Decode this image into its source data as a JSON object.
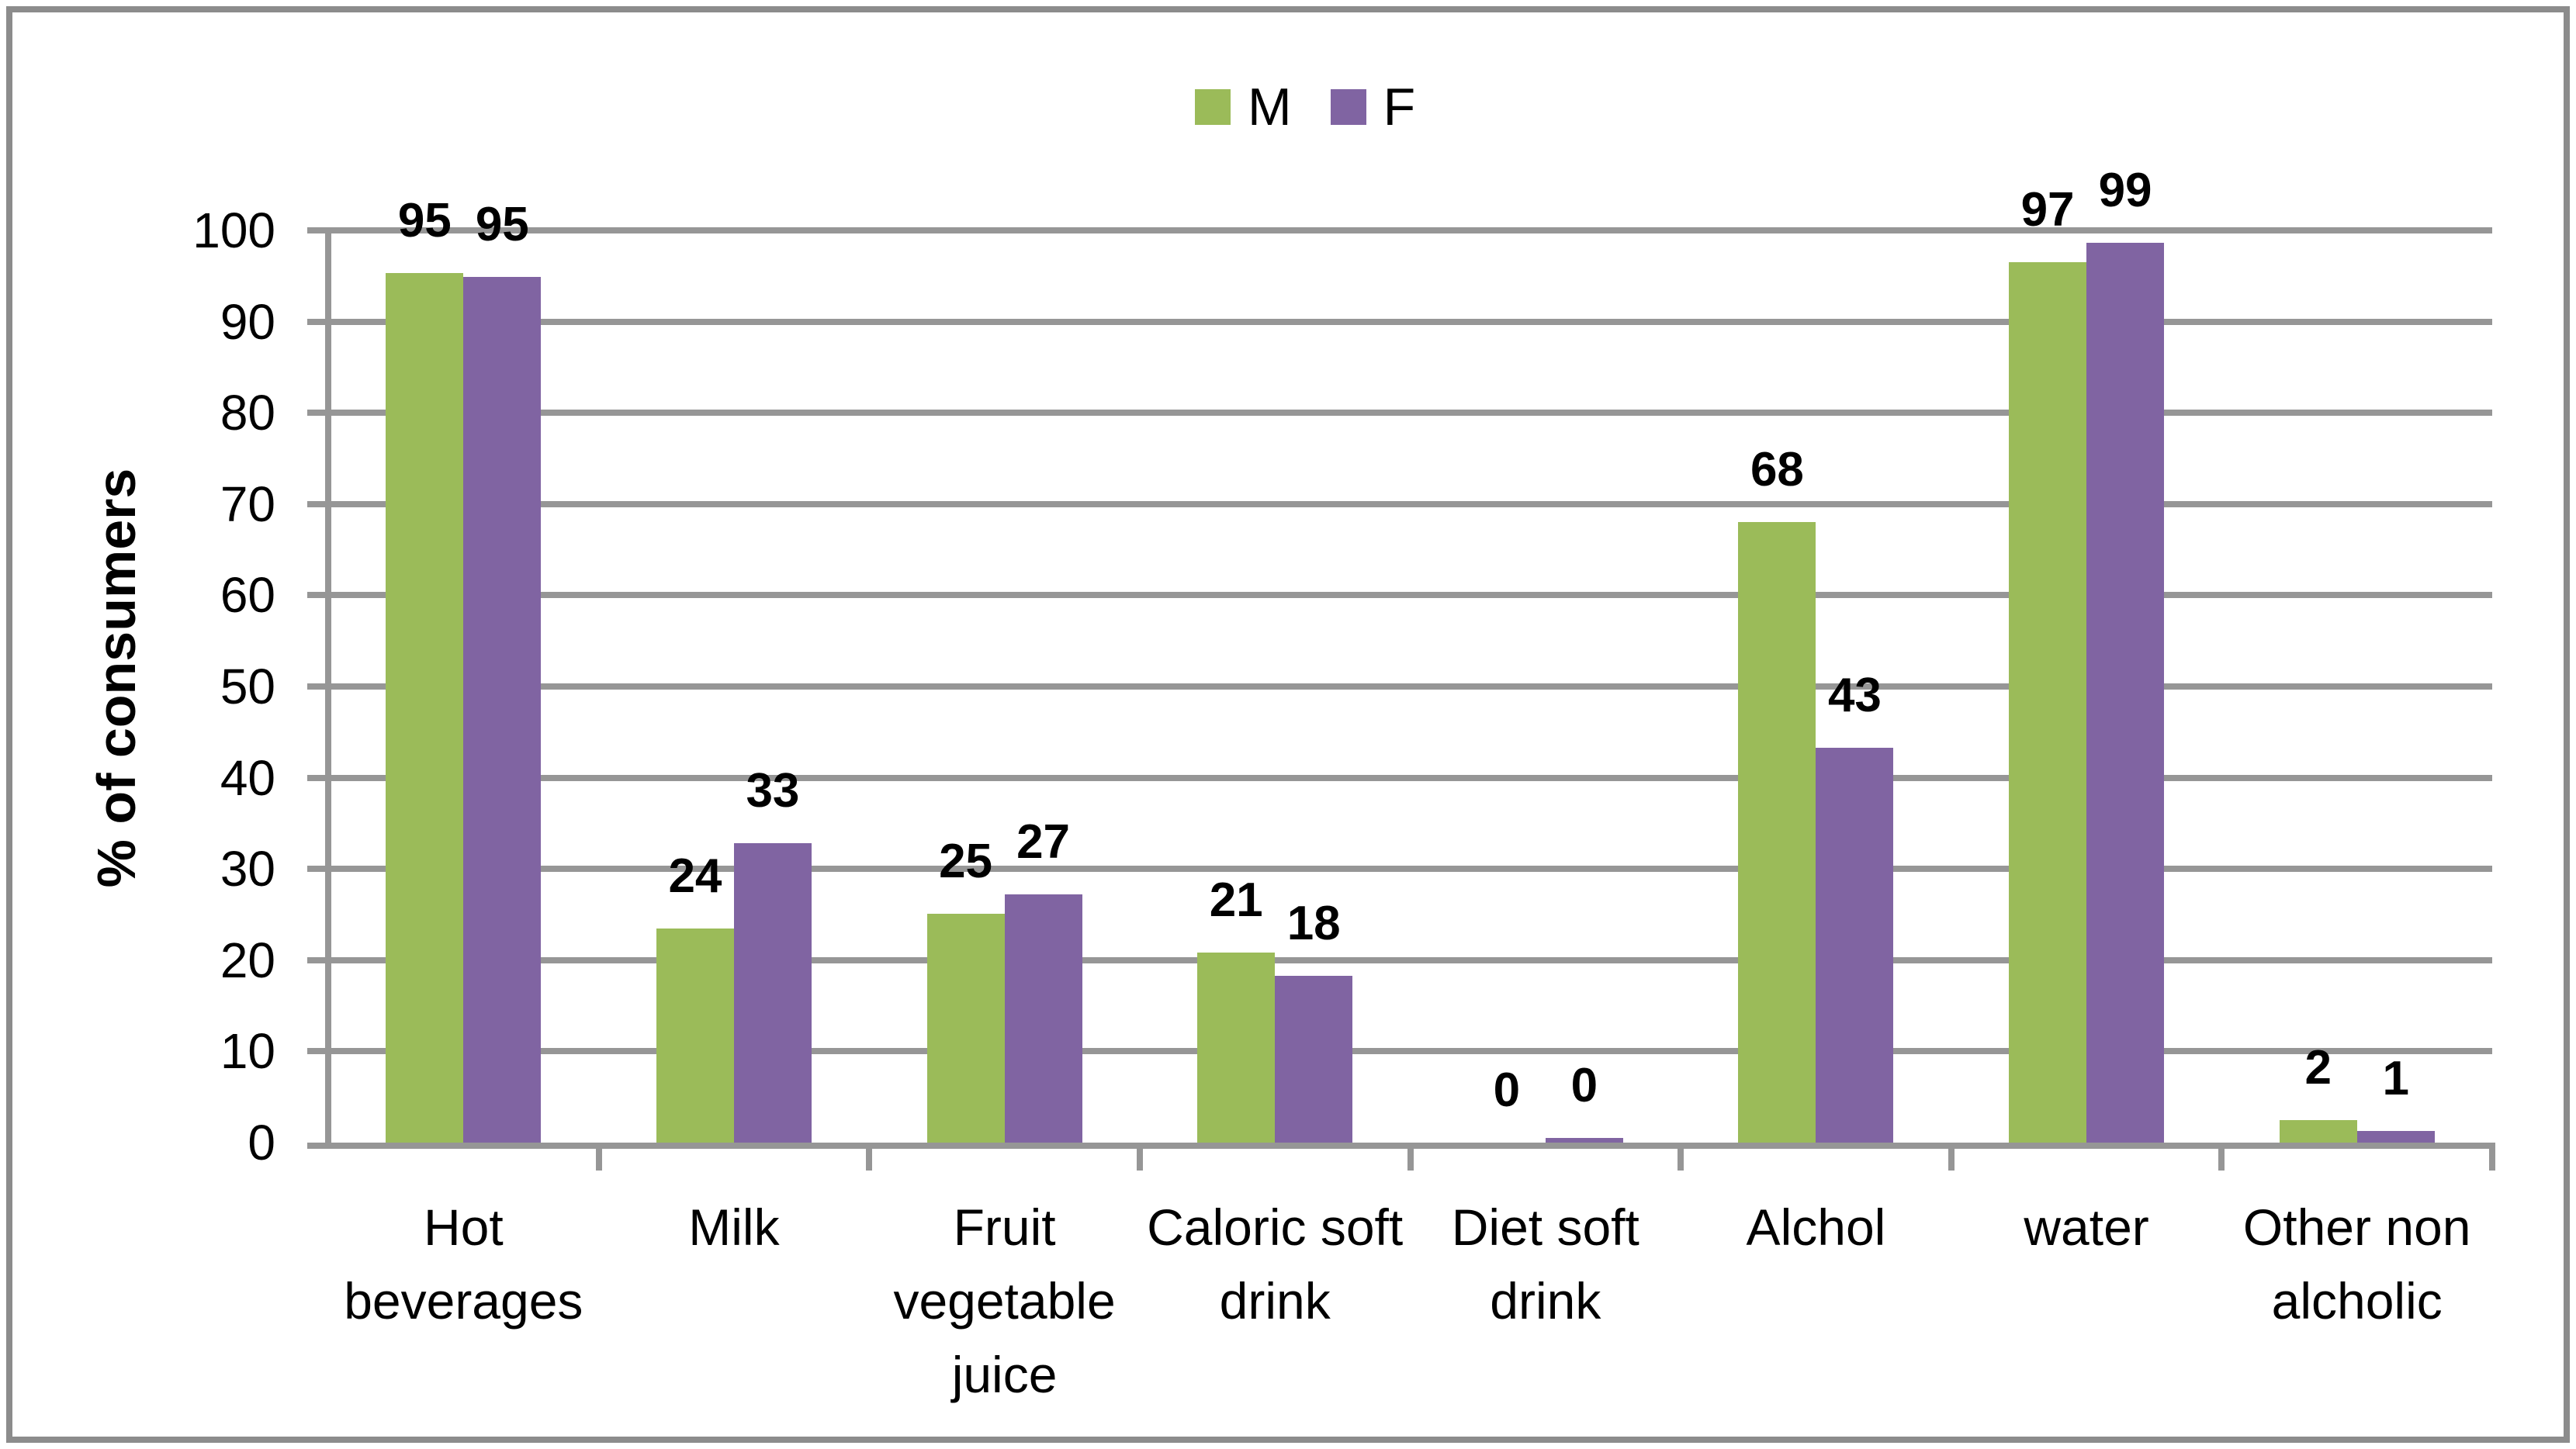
{
  "figure": {
    "background": "#FFFFFF",
    "border_color": "#8C8C8C"
  },
  "legend": {
    "position": "top center",
    "items": [
      {
        "label": "M",
        "color": "#9BBB59"
      },
      {
        "label": "F",
        "color": "#8064A2"
      }
    ]
  },
  "axis_style": {
    "gridline_color": "#969696",
    "axis_color": "#969696",
    "text_color": "#000000"
  },
  "chart_data": {
    "type": "bar",
    "title": "",
    "xlabel": "",
    "ylabel": "% of consumers",
    "ylim": [
      0,
      100
    ],
    "yticks": [
      0,
      10,
      20,
      30,
      40,
      50,
      60,
      70,
      80,
      90,
      100
    ],
    "grid": "horizontal",
    "legend_position": "top",
    "data_labels": {
      "show": true,
      "position": "outside-end",
      "bold": true
    },
    "categories": [
      "Hot beverages",
      "Milk",
      "Fruit vegetable juice",
      "Caloric soft drink",
      "Diet soft drink",
      "Alchol",
      "water",
      "Other non alcholic"
    ],
    "series": [
      {
        "name": "M",
        "color": "#9BBB59",
        "values": [
          95,
          24,
          25,
          21,
          0,
          68,
          97,
          2
        ]
      },
      {
        "name": "F",
        "color": "#8064A2",
        "values": [
          95,
          33,
          27,
          18,
          0,
          43,
          99,
          1
        ]
      }
    ],
    "drawn_bar_heights": {
      "M": [
        95.3,
        23.5,
        25.1,
        20.8,
        0,
        68,
        96.5,
        2.5
      ],
      "F": [
        94.9,
        32.8,
        27.2,
        18.3,
        0.5,
        43.3,
        98.6,
        1.3
      ]
    }
  }
}
